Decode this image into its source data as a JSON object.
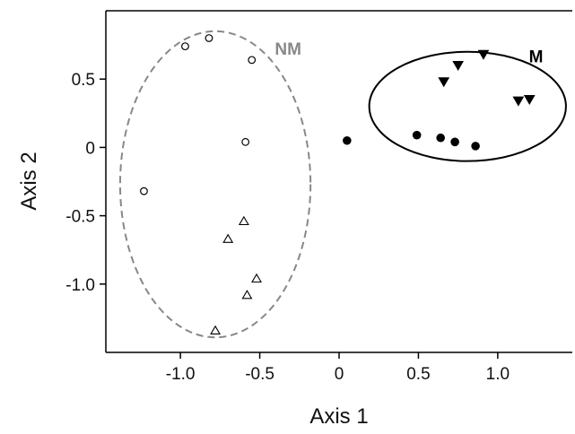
{
  "chart_data": {
    "type": "scatter",
    "title": "",
    "xlabel": "Axis 1",
    "ylabel": "Axis 2",
    "xlim": [
      -1.47,
      1.47
    ],
    "ylim": [
      -1.5,
      1.0
    ],
    "xticks": [
      -1.0,
      -0.5,
      0,
      0.5,
      1.0
    ],
    "xtick_labels": [
      "-1.0",
      "-0.5",
      "0",
      "0.5",
      "1.0"
    ],
    "yticks": [
      -1.0,
      -0.5,
      0,
      0.5
    ],
    "ytick_labels": [
      "-1.0",
      "-0.5",
      "0",
      "0.5"
    ],
    "grid": false,
    "groups": [
      {
        "label": "NM",
        "color": "#888888",
        "line": "dashed",
        "center": [
          -0.78,
          -0.27
        ],
        "semi_axes": [
          0.6,
          1.12
        ]
      },
      {
        "label": "M",
        "color": "#000000",
        "line": "solid",
        "center": [
          0.81,
          0.3
        ],
        "semi_axes": [
          0.62,
          0.4
        ]
      }
    ],
    "series": [
      {
        "marker": "open-circle",
        "color": "#000000",
        "group": "NM",
        "points": [
          [
            -0.97,
            0.74
          ],
          [
            -0.82,
            0.8
          ],
          [
            -0.55,
            0.64
          ],
          [
            -0.59,
            0.04
          ],
          [
            -1.23,
            -0.32
          ]
        ]
      },
      {
        "marker": "open-triangle",
        "color": "#000000",
        "group": "NM",
        "points": [
          [
            -0.6,
            -0.54
          ],
          [
            -0.7,
            -0.67
          ],
          [
            -0.52,
            -0.96
          ],
          [
            -0.58,
            -1.08
          ],
          [
            -0.78,
            -1.34
          ]
        ]
      },
      {
        "marker": "filled-triangle-down",
        "color": "#000000",
        "group": "M",
        "points": [
          [
            0.91,
            0.68
          ],
          [
            0.75,
            0.6
          ],
          [
            0.66,
            0.48
          ],
          [
            1.13,
            0.34
          ],
          [
            1.2,
            0.35
          ]
        ]
      },
      {
        "marker": "filled-circle",
        "color": "#000000",
        "group": "M",
        "points": [
          [
            0.05,
            0.05
          ],
          [
            0.49,
            0.09
          ],
          [
            0.64,
            0.07
          ],
          [
            0.73,
            0.04
          ],
          [
            0.86,
            0.01
          ]
        ]
      }
    ]
  }
}
